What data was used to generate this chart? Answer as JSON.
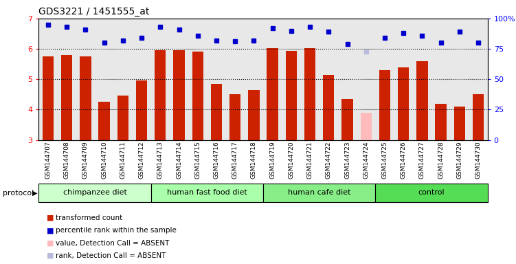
{
  "title": "GDS3221 / 1451555_at",
  "samples": [
    "GSM144707",
    "GSM144708",
    "GSM144709",
    "GSM144710",
    "GSM144711",
    "GSM144712",
    "GSM144713",
    "GSM144714",
    "GSM144715",
    "GSM144716",
    "GSM144717",
    "GSM144718",
    "GSM144719",
    "GSM144720",
    "GSM144721",
    "GSM144722",
    "GSM144723",
    "GSM144724",
    "GSM144725",
    "GSM144726",
    "GSM144727",
    "GSM144728",
    "GSM144729",
    "GSM144730"
  ],
  "bar_values": [
    5.75,
    5.8,
    5.75,
    4.25,
    4.45,
    4.95,
    5.95,
    5.95,
    5.9,
    4.85,
    4.5,
    4.65,
    6.02,
    5.93,
    6.02,
    5.15,
    4.35,
    3.9,
    5.3,
    5.4,
    5.6,
    4.2,
    4.1,
    4.5
  ],
  "bar_absent": [
    false,
    false,
    false,
    false,
    false,
    false,
    false,
    false,
    false,
    false,
    false,
    false,
    false,
    false,
    false,
    false,
    false,
    true,
    false,
    false,
    false,
    false,
    false,
    false
  ],
  "rank_values": [
    95,
    93,
    91,
    80,
    82,
    84,
    93,
    91,
    86,
    82,
    81,
    82,
    92,
    90,
    93,
    89,
    79,
    73,
    84,
    88,
    86,
    80,
    89,
    80
  ],
  "rank_absent": [
    false,
    false,
    false,
    false,
    false,
    false,
    false,
    false,
    false,
    false,
    false,
    false,
    false,
    false,
    false,
    false,
    false,
    true,
    false,
    false,
    false,
    false,
    false,
    false
  ],
  "ylim": [
    3,
    7
  ],
  "ylim_right": [
    0,
    100
  ],
  "bar_color_normal": "#cc2200",
  "bar_color_absent": "#ffbbbb",
  "rank_color_normal": "#0000cc",
  "rank_color_absent": "#bbbbdd",
  "bg_color": "#e8e8e8",
  "group_spans": [
    [
      0,
      6,
      "chimpanzee diet",
      "#ccffcc"
    ],
    [
      6,
      12,
      "human fast food diet",
      "#aaffaa"
    ],
    [
      12,
      18,
      "human cafe diet",
      "#88ee88"
    ],
    [
      18,
      24,
      "control",
      "#55dd55"
    ]
  ]
}
